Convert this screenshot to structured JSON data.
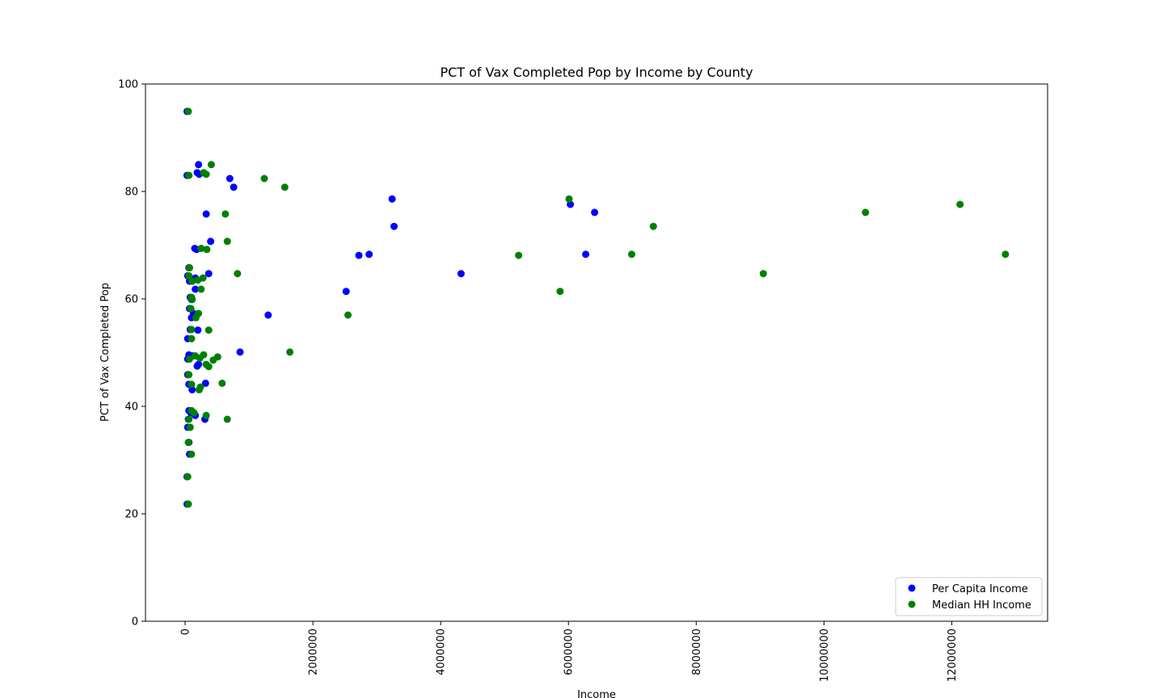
{
  "chart_data": {
    "type": "scatter",
    "title": "PCT of Vax Completed Pop by Income by County",
    "xlabel": "Income",
    "ylabel": "PCT of Vax Completed Pop",
    "xlim": [
      -620000,
      13500000
    ],
    "ylim": [
      0,
      100
    ],
    "xticks": [
      0,
      2000000,
      4000000,
      6000000,
      8000000,
      10000000,
      12000000
    ],
    "xtick_labels": [
      "0",
      "2000000",
      "4000000",
      "6000000",
      "8000000",
      "10000000",
      "12000000"
    ],
    "yticks": [
      0,
      20,
      40,
      60,
      80,
      100
    ],
    "ytick_labels": [
      "0",
      "20",
      "40",
      "60",
      "80",
      "100"
    ],
    "grid": false,
    "legend_position": "lower-right",
    "series": [
      {
        "name": "Per Capita Income",
        "color": "#0000ff",
        "points": [
          [
            30000,
            94.9
          ],
          [
            30000,
            83.0
          ],
          [
            210000,
            85.0
          ],
          [
            190000,
            83.5
          ],
          [
            220000,
            83.2
          ],
          [
            700000,
            82.4
          ],
          [
            760000,
            80.8
          ],
          [
            330000,
            75.8
          ],
          [
            400000,
            70.7
          ],
          [
            150000,
            69.4
          ],
          [
            180000,
            69.2
          ],
          [
            60000,
            65.8
          ],
          [
            40000,
            64.3
          ],
          [
            370000,
            64.7
          ],
          [
            70000,
            63.3
          ],
          [
            110000,
            63.5
          ],
          [
            160000,
            63.9
          ],
          [
            160000,
            61.8
          ],
          [
            80000,
            60.3
          ],
          [
            100000,
            59.9
          ],
          [
            70000,
            58.2
          ],
          [
            130000,
            57.3
          ],
          [
            100000,
            56.5
          ],
          [
            200000,
            54.2
          ],
          [
            80000,
            54.3
          ],
          [
            40000,
            52.6
          ],
          [
            60000,
            49.6
          ],
          [
            120000,
            49.4
          ],
          [
            40000,
            48.8
          ],
          [
            210000,
            47.8
          ],
          [
            190000,
            47.5
          ],
          [
            860000,
            50.1
          ],
          [
            40000,
            45.9
          ],
          [
            60000,
            44.1
          ],
          [
            320000,
            44.3
          ],
          [
            110000,
            43.1
          ],
          [
            60000,
            39.2
          ],
          [
            90000,
            38.8
          ],
          [
            160000,
            38.3
          ],
          [
            50000,
            37.6
          ],
          [
            310000,
            37.6
          ],
          [
            40000,
            36.1
          ],
          [
            60000,
            33.3
          ],
          [
            70000,
            31.1
          ],
          [
            30000,
            26.9
          ],
          [
            30000,
            21.8
          ],
          [
            1300000,
            57.0
          ],
          [
            2520000,
            61.4
          ],
          [
            2720000,
            68.1
          ],
          [
            2880000,
            68.3
          ],
          [
            3240000,
            78.6
          ],
          [
            3270000,
            73.5
          ],
          [
            4320000,
            64.7
          ],
          [
            6030000,
            77.6
          ],
          [
            6270000,
            68.3
          ],
          [
            6410000,
            76.1
          ]
        ]
      },
      {
        "name": "Median HH Income",
        "color": "#008000",
        "points": [
          [
            50000,
            94.9
          ],
          [
            60000,
            83.0
          ],
          [
            410000,
            85.0
          ],
          [
            290000,
            83.5
          ],
          [
            330000,
            83.2
          ],
          [
            1240000,
            82.4
          ],
          [
            1560000,
            80.8
          ],
          [
            630000,
            75.8
          ],
          [
            660000,
            70.7
          ],
          [
            250000,
            69.4
          ],
          [
            340000,
            69.2
          ],
          [
            70000,
            65.8
          ],
          [
            60000,
            64.3
          ],
          [
            820000,
            64.7
          ],
          [
            110000,
            63.3
          ],
          [
            200000,
            63.5
          ],
          [
            280000,
            63.9
          ],
          [
            250000,
            61.8
          ],
          [
            100000,
            60.3
          ],
          [
            110000,
            59.9
          ],
          [
            90000,
            58.2
          ],
          [
            210000,
            57.3
          ],
          [
            170000,
            56.5
          ],
          [
            370000,
            54.2
          ],
          [
            100000,
            54.3
          ],
          [
            100000,
            52.6
          ],
          [
            290000,
            49.6
          ],
          [
            160000,
            49.4
          ],
          [
            70000,
            48.8
          ],
          [
            510000,
            49.2
          ],
          [
            440000,
            48.6
          ],
          [
            330000,
            47.8
          ],
          [
            370000,
            47.4
          ],
          [
            230000,
            49.0
          ],
          [
            1640000,
            50.1
          ],
          [
            60000,
            45.9
          ],
          [
            100000,
            44.1
          ],
          [
            580000,
            44.3
          ],
          [
            220000,
            43.1
          ],
          [
            240000,
            43.6
          ],
          [
            100000,
            39.2
          ],
          [
            140000,
            38.8
          ],
          [
            330000,
            38.3
          ],
          [
            60000,
            37.6
          ],
          [
            660000,
            37.6
          ],
          [
            80000,
            36.1
          ],
          [
            50000,
            33.3
          ],
          [
            100000,
            31.1
          ],
          [
            40000,
            26.9
          ],
          [
            50000,
            21.8
          ],
          [
            2550000,
            57.0
          ],
          [
            5870000,
            61.4
          ],
          [
            5220000,
            68.1
          ],
          [
            6990000,
            68.3
          ],
          [
            6010000,
            78.6
          ],
          [
            7330000,
            73.5
          ],
          [
            9050000,
            64.7
          ],
          [
            12130000,
            77.6
          ],
          [
            12840000,
            68.3
          ],
          [
            10650000,
            76.1
          ]
        ]
      }
    ]
  }
}
